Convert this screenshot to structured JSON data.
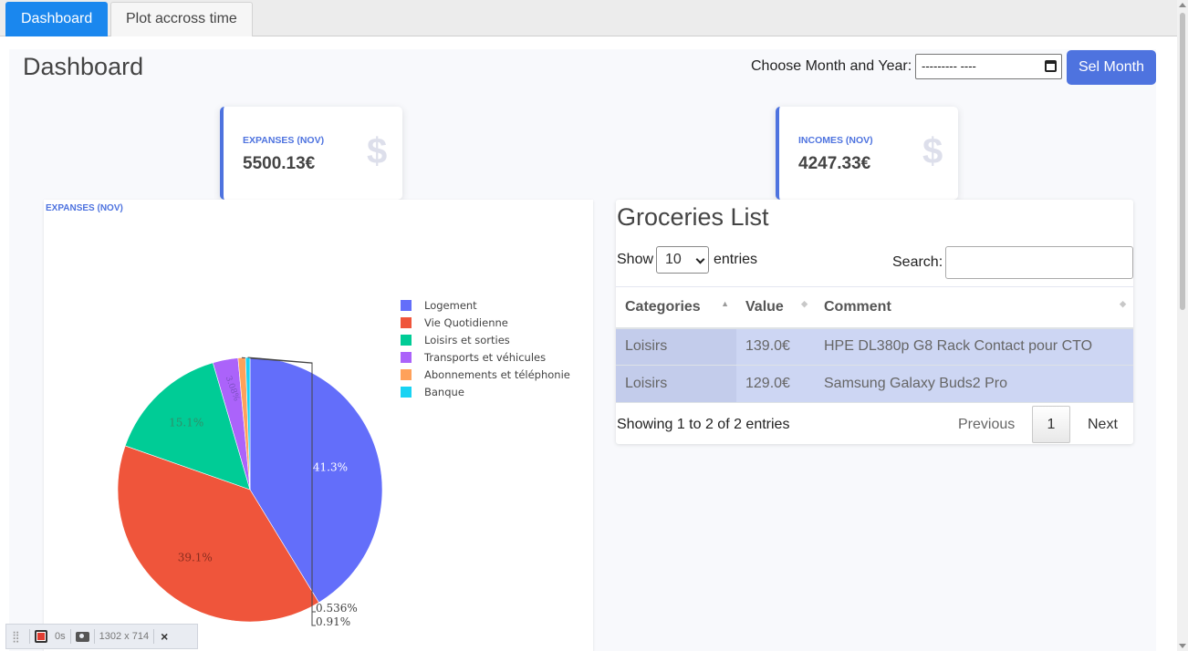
{
  "tabs": [
    {
      "label": "Dashboard",
      "active": true
    },
    {
      "label": "Plot accross time",
      "active": false
    }
  ],
  "header": {
    "title": "Dashboard",
    "month_label": "Choose Month and Year:",
    "month_value": "--------- ----",
    "select_button": "Sel Month"
  },
  "cards": {
    "expenses": {
      "label": "EXPANSES (NOV)",
      "value": "5500.13€",
      "icon": "$"
    },
    "incomes": {
      "label": "INCOMES (NOV)",
      "value": "4247.33€",
      "icon": "$"
    }
  },
  "chart_data": {
    "type": "pie",
    "title": "EXPANSES (NOV)",
    "legend_position": "top-right",
    "categories": [
      "Logement",
      "Vie Quotidienne",
      "Loisirs et sorties",
      "Transports et véhicules",
      "Abonnements et téléphonie",
      "Banque"
    ],
    "values": [
      41.3,
      39.1,
      15.1,
      3.08,
      0.91,
      0.536
    ],
    "labels": [
      "41.3%",
      "39.1%",
      "15.1%",
      "3.08%",
      "0.91%",
      "0.536%"
    ],
    "colors": [
      "#636efa",
      "#ef553b",
      "#00cc96",
      "#ab63fa",
      "#ffa15a",
      "#19d3f3"
    ]
  },
  "groceries": {
    "title": "Groceries List",
    "show_label": "Show",
    "page_size": "10",
    "entries_label": "entries",
    "search_label": "Search:",
    "columns": [
      "Categories",
      "Value",
      "Comment"
    ],
    "rows": [
      {
        "category": "Loisirs",
        "value": "139.0€",
        "comment": "HPE DL380p G8 Rack Contact pour CTO"
      },
      {
        "category": "Loisirs",
        "value": "129.0€",
        "comment": "Samsung Galaxy Buds2 Pro"
      }
    ],
    "info": "Showing 1 to 2 of 2 entries",
    "pager": {
      "previous": "Previous",
      "page": "1",
      "next": "Next"
    }
  },
  "devbar": {
    "time": "0s",
    "size": "1302 x 714",
    "close": "×"
  }
}
